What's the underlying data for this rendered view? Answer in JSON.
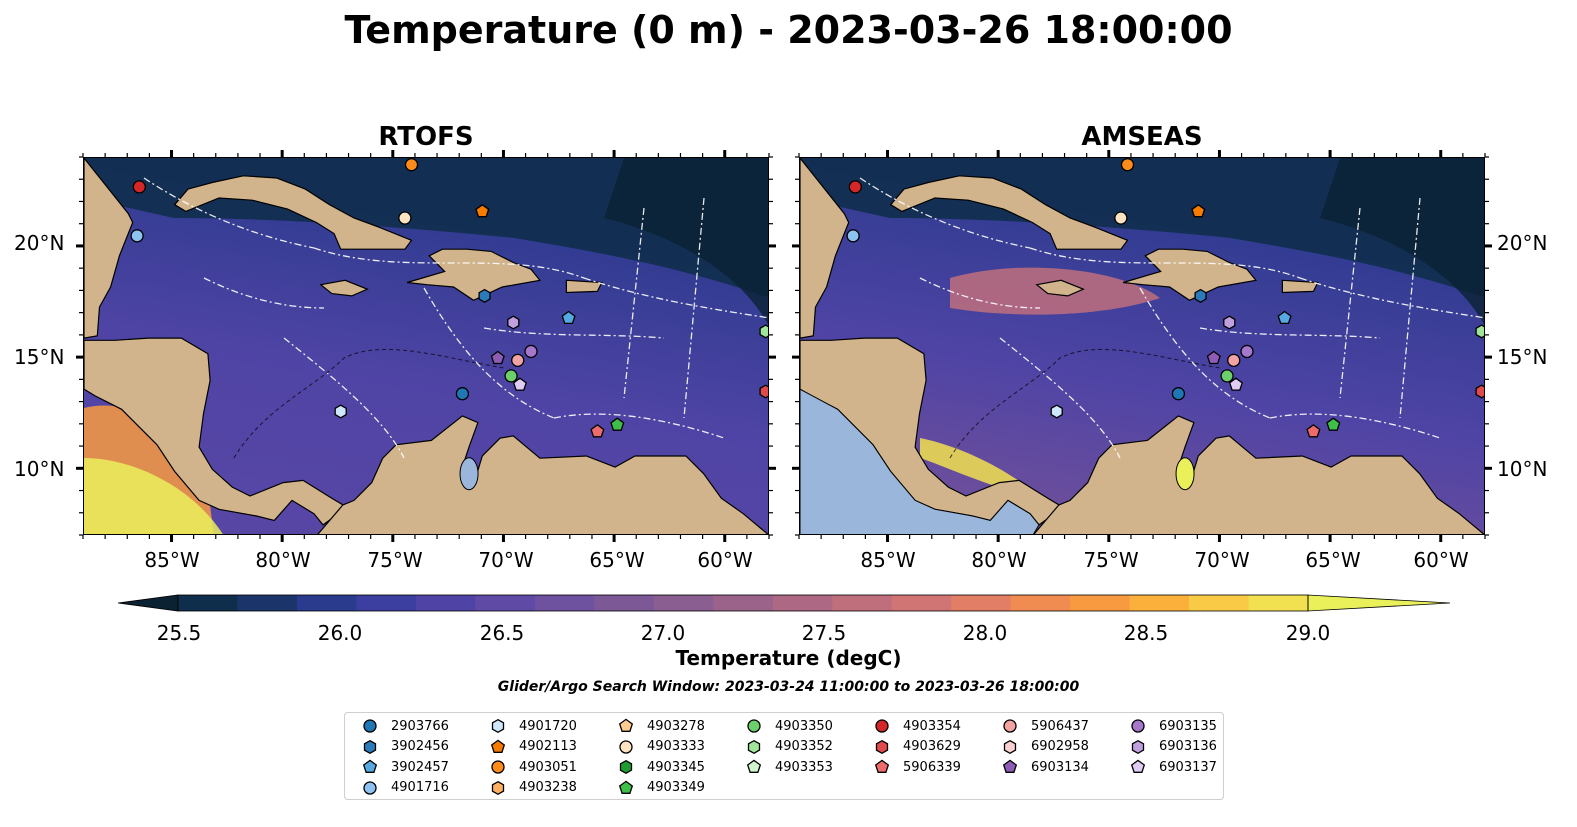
{
  "title": "Temperature (0 m) - 2023-03-26 18:00:00",
  "panels": [
    {
      "title": "RTOFS"
    },
    {
      "title": "AMSEAS"
    }
  ],
  "axes": {
    "lon_ticks": [
      "85°W",
      "80°W",
      "75°W",
      "70°W",
      "65°W",
      "60°W"
    ],
    "lat_ticks": [
      "20°N",
      "15°N",
      "10°N"
    ]
  },
  "colorbar": {
    "label": "Temperature (degC)",
    "ticks": [
      "25.5",
      "26.0",
      "26.5",
      "27.0",
      "27.5",
      "28.0",
      "28.5",
      "29.0"
    ],
    "range": [
      25.25,
      29.25
    ],
    "extend": "both",
    "colors": [
      "#0b2233",
      "#0f2e4c",
      "#1b356b",
      "#2a3a8c",
      "#3c3fa0",
      "#4f44a5",
      "#5f4aa6",
      "#6e519f",
      "#7c5897",
      "#8a5e90",
      "#9b638a",
      "#ad6883",
      "#bf6e7c",
      "#d17574",
      "#e27e66",
      "#f08b52",
      "#f89b40",
      "#fbb03c",
      "#f9ca45",
      "#f1e04f",
      "#e9f05a"
    ]
  },
  "search_window": "Glider/Argo Search Window: 2023-03-24 11:00:00 to 2023-03-26 18:00:00",
  "legend": {
    "columns": [
      [
        {
          "label": "2903766",
          "marker": "circle",
          "color": "#1f77b4"
        },
        {
          "label": "3902456",
          "marker": "hexagon",
          "color": "#2b7bba"
        },
        {
          "label": "3902457",
          "marker": "pentagon",
          "color": "#56a8e0"
        },
        {
          "label": "4901716",
          "marker": "circle",
          "color": "#8cc3f0"
        }
      ],
      [
        {
          "label": "4901720",
          "marker": "hexagon",
          "color": "#cfe7fa"
        },
        {
          "label": "4902113",
          "marker": "pentagon",
          "color": "#f57c00"
        },
        {
          "label": "4903051",
          "marker": "circle",
          "color": "#ff8c1a"
        },
        {
          "label": "4903238",
          "marker": "hexagon",
          "color": "#ffb060"
        }
      ],
      [
        {
          "label": "4903278",
          "marker": "pentagon",
          "color": "#ffcb8f"
        },
        {
          "label": "4903333",
          "marker": "circle",
          "color": "#ffe4c4"
        },
        {
          "label": "4903345",
          "marker": "hexagon",
          "color": "#1f9d33"
        },
        {
          "label": "4903349",
          "marker": "pentagon",
          "color": "#3fbf4a"
        }
      ],
      [
        {
          "label": "4903350",
          "marker": "circle",
          "color": "#6cd06a"
        },
        {
          "label": "4903352",
          "marker": "hexagon",
          "color": "#9fe59a"
        },
        {
          "label": "4903353",
          "marker": "pentagon",
          "color": "#d2f7cf"
        }
      ],
      [
        {
          "label": "4903354",
          "marker": "circle",
          "color": "#d62728"
        },
        {
          "label": "4903629",
          "marker": "hexagon",
          "color": "#e04a4a"
        },
        {
          "label": "5906339",
          "marker": "pentagon",
          "color": "#ee6b6b"
        }
      ],
      [
        {
          "label": "5906437",
          "marker": "circle",
          "color": "#f4a3a3"
        },
        {
          "label": "6902958",
          "marker": "hexagon",
          "color": "#fbd0d0"
        },
        {
          "label": "6903134",
          "marker": "pentagon",
          "color": "#8e5bb5"
        }
      ],
      [
        {
          "label": "6903135",
          "marker": "circle",
          "color": "#a678cc"
        },
        {
          "label": "6903136",
          "marker": "hexagon",
          "color": "#c1a0e0"
        },
        {
          "label": "6903137",
          "marker": "pentagon",
          "color": "#e0ccf5"
        }
      ]
    ]
  },
  "map_extent": {
    "lon": [
      -89,
      -58
    ],
    "lat": [
      7,
      24
    ]
  },
  "colors": {
    "land": "#d2b48c",
    "lake": "#9ab6db"
  },
  "floats": [
    {
      "id": "4903354",
      "lon": -86.5,
      "lat": 22.7
    },
    {
      "id": "4901716",
      "lon": -86.6,
      "lat": 20.5
    },
    {
      "id": "4903051",
      "lon": -74.2,
      "lat": 23.7
    },
    {
      "id": "4903333",
      "lon": -74.5,
      "lat": 21.3
    },
    {
      "id": "4902113",
      "lon": -71.0,
      "lat": 21.6
    },
    {
      "id": "3902456",
      "lon": -70.9,
      "lat": 17.8
    },
    {
      "id": "3902457",
      "lon": -67.1,
      "lat": 16.8
    },
    {
      "id": "6903136",
      "lon": -69.6,
      "lat": 16.6
    },
    {
      "id": "6903135",
      "lon": -68.8,
      "lat": 15.3
    },
    {
      "id": "6903134",
      "lon": -70.3,
      "lat": 15.0
    },
    {
      "id": "5906437",
      "lon": -69.4,
      "lat": 14.9
    },
    {
      "id": "4903350",
      "lon": -69.7,
      "lat": 14.2
    },
    {
      "id": "6903137",
      "lon": -69.3,
      "lat": 13.8
    },
    {
      "id": "2903766",
      "lon": -71.9,
      "lat": 13.4
    },
    {
      "id": "4901720",
      "lon": -77.4,
      "lat": 12.6
    },
    {
      "id": "5906339",
      "lon": -65.8,
      "lat": 11.7
    },
    {
      "id": "4903349",
      "lon": -64.9,
      "lat": 12.0
    },
    {
      "id": "4903352",
      "lon": -58.2,
      "lat": 16.2
    },
    {
      "id": "4903629",
      "lon": -58.2,
      "lat": 13.5
    }
  ]
}
